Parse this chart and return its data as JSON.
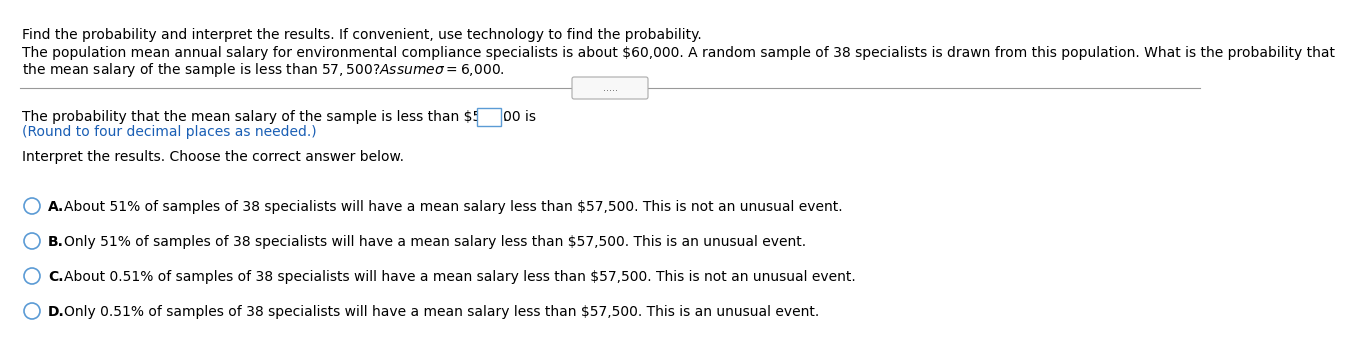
{
  "bg_color": "#ffffff",
  "header_text": "Find the probability and interpret the results. If convenient, use technology to find the probability.",
  "problem_line1": "The population mean annual salary for environmental compliance specialists is about $60,000. A random sample of 38 specialists is drawn from this population. What is the probability that",
  "problem_line2": "the mean salary of the sample is less than $57,500? Assume σ = $6,000.",
  "dots_text": ".....",
  "prob_text": "The probability that the mean salary of the sample is less than $57,500 is",
  "round_text": "(Round to four decimal places as needed.)",
  "interpret_text": "Interpret the results. Choose the correct answer below.",
  "options": [
    "A.  About 51% of samples of 38 specialists will have a mean salary less than $57,500. This is not an unusual event.",
    "B.  Only 51% of samples of 38 specialists will have a mean salary less than $57,500. This is an unusual event.",
    "C.  About 0.51% of samples of 38 specialists will have a mean salary less than $57,500. This is not an unusual event.",
    "D.  Only 0.51% of samples of 38 specialists will have a mean salary less than $57,500. This is an unusual event."
  ],
  "text_color": "#000000",
  "blue_color": "#1a5fb5",
  "circle_color": "#5b9bd5",
  "box_edge_color": "#5b9bd5",
  "line_color": "#999999",
  "font_size": 10.0,
  "font_size_blue": 10.0
}
